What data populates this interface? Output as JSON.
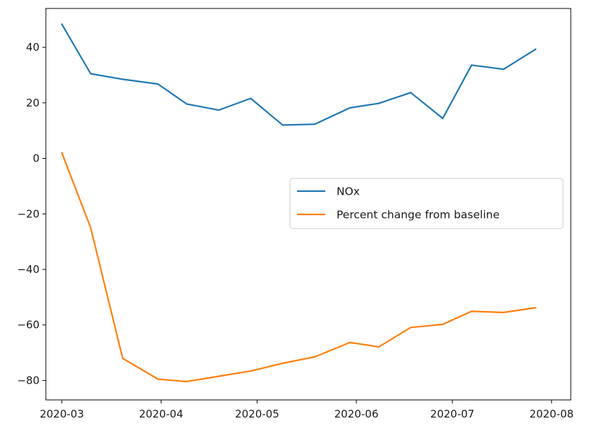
{
  "chart_data": {
    "type": "line",
    "title": "",
    "xlabel": "",
    "ylabel": "",
    "x": [
      "2020-03-01",
      "2020-03-10",
      "2020-03-20",
      "2020-03-31",
      "2020-04-09",
      "2020-04-19",
      "2020-04-29",
      "2020-05-09",
      "2020-05-19",
      "2020-05-30",
      "2020-06-08",
      "2020-06-18",
      "2020-06-28",
      "2020-07-07",
      "2020-07-17",
      "2020-07-27"
    ],
    "x_ticks": [
      "2020-03-01",
      "2020-04-01",
      "2020-05-01",
      "2020-06-01",
      "2020-07-01",
      "2020-08-01"
    ],
    "x_tick_labels": [
      "2020-03",
      "2020-04",
      "2020-05",
      "2020-06",
      "2020-07",
      "2020-08"
    ],
    "y_ticks": [
      40,
      20,
      0,
      -20,
      -40,
      -60,
      -80
    ],
    "y_tick_labels": [
      "40",
      "20",
      "0",
      "−20",
      "−40",
      "−60",
      "−80"
    ],
    "xlim": [
      "2020-02-25",
      "2020-08-07"
    ],
    "ylim": [
      -87,
      54
    ],
    "grid": false,
    "legend_position": "center-right",
    "series": [
      {
        "name": "NOx",
        "color": "#1f77b4",
        "values": [
          48.3,
          30.5,
          28.5,
          26.8,
          19.6,
          17.4,
          21.6,
          12.0,
          12.3,
          18.2,
          19.8,
          23.7,
          14.4,
          33.6,
          32.1,
          39.3
        ]
      },
      {
        "name": "Percent change from baseline",
        "color": "#ff7f0e",
        "values": [
          2.0,
          -25.0,
          -72.0,
          -79.5,
          -80.4,
          -78.5,
          -76.6,
          -73.8,
          -71.5,
          -66.3,
          -67.9,
          -60.9,
          -59.8,
          -55.1,
          -55.5,
          -53.8
        ]
      }
    ]
  }
}
